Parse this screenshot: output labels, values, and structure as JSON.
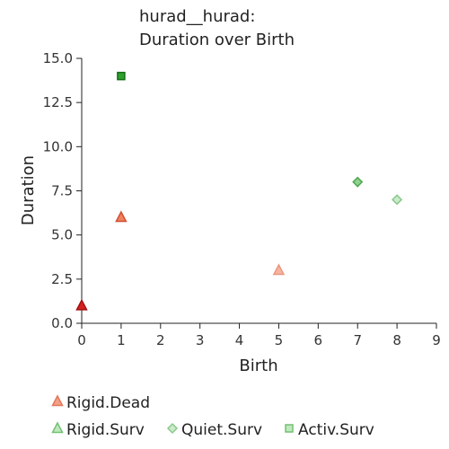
{
  "chart_data": {
    "type": "scatter",
    "title_lines": [
      "hurad__hurad:",
      "Duration over Birth"
    ],
    "xlabel": "Birth",
    "ylabel": "Duration",
    "xlim": [
      0,
      9
    ],
    "ylim": [
      0,
      15
    ],
    "x_ticks": [
      "0",
      "1",
      "2",
      "3",
      "4",
      "5",
      "6",
      "7",
      "8",
      "9"
    ],
    "y_ticks": [
      "0.0",
      "2.5",
      "5.0",
      "7.5",
      "10.0",
      "12.5",
      "15.0"
    ],
    "grid": false,
    "legend_position": "bottom",
    "series": [
      {
        "name": "Rigid.Dead",
        "marker": "triangle",
        "points": [
          {
            "x": 0,
            "y": 1,
            "color": "#d62020",
            "stroke": "#a01010"
          },
          {
            "x": 1,
            "y": 6,
            "color": "#f08060",
            "stroke": "#d05030"
          },
          {
            "x": 5,
            "y": 3,
            "color": "#f8b4a0",
            "stroke": "#e89880"
          }
        ],
        "legend_color": "#f4a088",
        "legend_stroke": "#e07858"
      },
      {
        "name": "Rigid.Surv",
        "marker": "triangle",
        "points": [],
        "legend_color": "#bfe8bf",
        "legend_stroke": "#74c074"
      },
      {
        "name": "Quiet.Surv",
        "marker": "diamond",
        "points": [
          {
            "x": 7,
            "y": 8,
            "color": "#8fd08f",
            "stroke": "#4fa84f"
          },
          {
            "x": 8,
            "y": 7,
            "color": "#c8ecc8",
            "stroke": "#8cc88c"
          }
        ],
        "legend_color": "#c8ecc8",
        "legend_stroke": "#8cc88c"
      },
      {
        "name": "Activ.Surv",
        "marker": "square",
        "points": [
          {
            "x": 1,
            "y": 14,
            "color": "#2ea02e",
            "stroke": "#137013"
          }
        ],
        "legend_color": "#bfe8bf",
        "legend_stroke": "#74c074"
      }
    ]
  }
}
